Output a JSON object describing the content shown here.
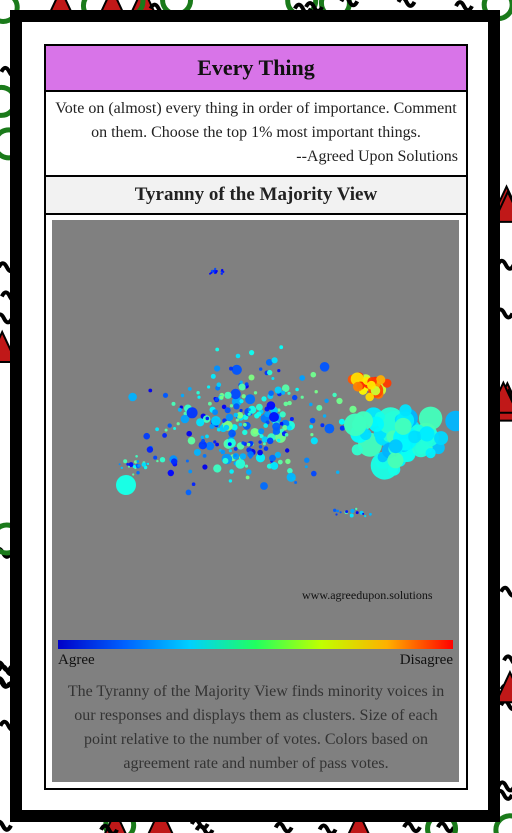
{
  "header": {
    "title": "Every Thing"
  },
  "quote": {
    "text": "Vote on (almost) every thing in order of importance. Comment on them. Choose the top 1% most important things.",
    "attribution": "--Agreed Upon Solutions"
  },
  "view": {
    "title": "Tyranny of the Majority View"
  },
  "plot": {
    "watermark": "www.agreedupon.solutions"
  },
  "scale": {
    "low": "Agree",
    "high": "Disagree"
  },
  "description": "The Tyranny of the Majority View finds minority voices in our responses and displays them as clusters. Size of each point relative to the number of votes. Colors based on agreement rate and number of pass votes."
}
